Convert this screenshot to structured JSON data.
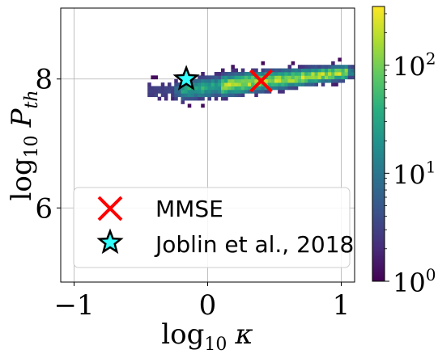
{
  "chart_data": {
    "type": "heatmap",
    "title": "",
    "xlabel": "log10 κ",
    "ylabel": "log10 P_th",
    "xlabel_parts": {
      "main": "log",
      "sub": "10",
      "var": "κ"
    },
    "ylabel_parts": {
      "main": "log",
      "sub": "10",
      "var": "P",
      "varsub": "th"
    },
    "xlim": [
      -1.1,
      1.1
    ],
    "ylim": [
      4.85,
      9.1
    ],
    "x_ticks": [
      {
        "value": -1,
        "label": "−1"
      },
      {
        "value": 0,
        "label": "0"
      },
      {
        "value": 1,
        "label": "1"
      }
    ],
    "y_ticks": [
      {
        "value": 6,
        "label": "6"
      },
      {
        "value": 8,
        "label": "8"
      }
    ],
    "grid": true,
    "colormap": "viridis",
    "color_scale": "log",
    "colorbar": {
      "vmin": 1,
      "vmax": 350,
      "ticks": [
        {
          "value": 1,
          "base": "10",
          "exp": "0"
        },
        {
          "value": 10,
          "base": "10",
          "exp": "1"
        },
        {
          "value": 100,
          "base": "10",
          "exp": "2"
        }
      ]
    },
    "density_ridge": [
      {
        "x": -0.35,
        "y": 7.78
      },
      {
        "x": 0.0,
        "y": 7.85
      },
      {
        "x": 0.3,
        "y": 7.92
      },
      {
        "x": 0.6,
        "y": 7.98
      },
      {
        "x": 0.9,
        "y": 8.05
      },
      {
        "x": 1.05,
        "y": 8.08
      }
    ],
    "markers": [
      {
        "name": "MMSE",
        "x": 0.4,
        "y": 7.97,
        "marker": "x",
        "color": "#ff0000"
      },
      {
        "name": "Joblin et al., 2018",
        "x": -0.16,
        "y": 8.0,
        "marker": "star",
        "color": "#33ffff"
      }
    ],
    "legend": {
      "placement": "lower-left",
      "entries": [
        "MMSE",
        "Joblin et al., 2018"
      ]
    }
  }
}
